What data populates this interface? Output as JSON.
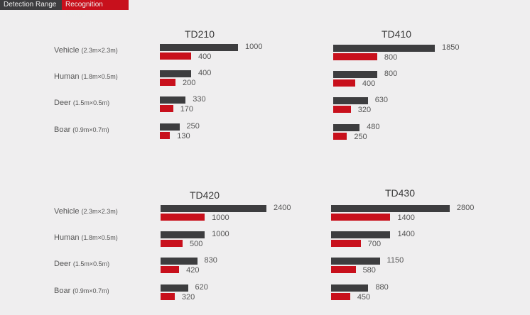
{
  "legend": {
    "detection": "Detection Range",
    "recognition": "Recognition Range"
  },
  "colors": {
    "detection": "#3d3d3f",
    "recognition": "#c8101c"
  },
  "chart_data": [
    {
      "type": "bar",
      "title": "TD210",
      "categories": [
        "Vehicle",
        "Human",
        "Deer",
        "Boar"
      ],
      "sizes": [
        "(2.3m×2.3m)",
        "(1.8m×0.5m)",
        "(1.5m×0.5m)",
        "(0.9m×0.7m)"
      ],
      "series": [
        {
          "name": "Detection Range",
          "values": [
            1000,
            400,
            330,
            250
          ]
        },
        {
          "name": "Recognition Range",
          "values": [
            400,
            200,
            170,
            130
          ]
        }
      ]
    },
    {
      "type": "bar",
      "title": "TD410",
      "categories": [
        "Vehicle",
        "Human",
        "Deer",
        "Boar"
      ],
      "series": [
        {
          "name": "Detection Range",
          "values": [
            1850,
            800,
            630,
            480
          ]
        },
        {
          "name": "Recognition Range",
          "values": [
            800,
            400,
            320,
            250
          ]
        }
      ]
    },
    {
      "type": "bar",
      "title": "TD420",
      "categories": [
        "Vehicle",
        "Human",
        "Deer",
        "Boar"
      ],
      "sizes": [
        "(2.3m×2.3m)",
        "(1.8m×0.5m)",
        "(1.5m×0.5m)",
        "(0.9m×0.7m)"
      ],
      "series": [
        {
          "name": "Detection Range",
          "values": [
            2400,
            1000,
            830,
            620
          ]
        },
        {
          "name": "Recognition Range",
          "values": [
            1000,
            500,
            420,
            320
          ]
        }
      ]
    },
    {
      "type": "bar",
      "title": "TD430",
      "categories": [
        "Vehicle",
        "Human",
        "Deer",
        "Boar"
      ],
      "series": [
        {
          "name": "Detection Range",
          "values": [
            2800,
            1400,
            1150,
            880
          ]
        },
        {
          "name": "Recognition Range",
          "values": [
            1400,
            700,
            580,
            450
          ]
        }
      ]
    }
  ]
}
